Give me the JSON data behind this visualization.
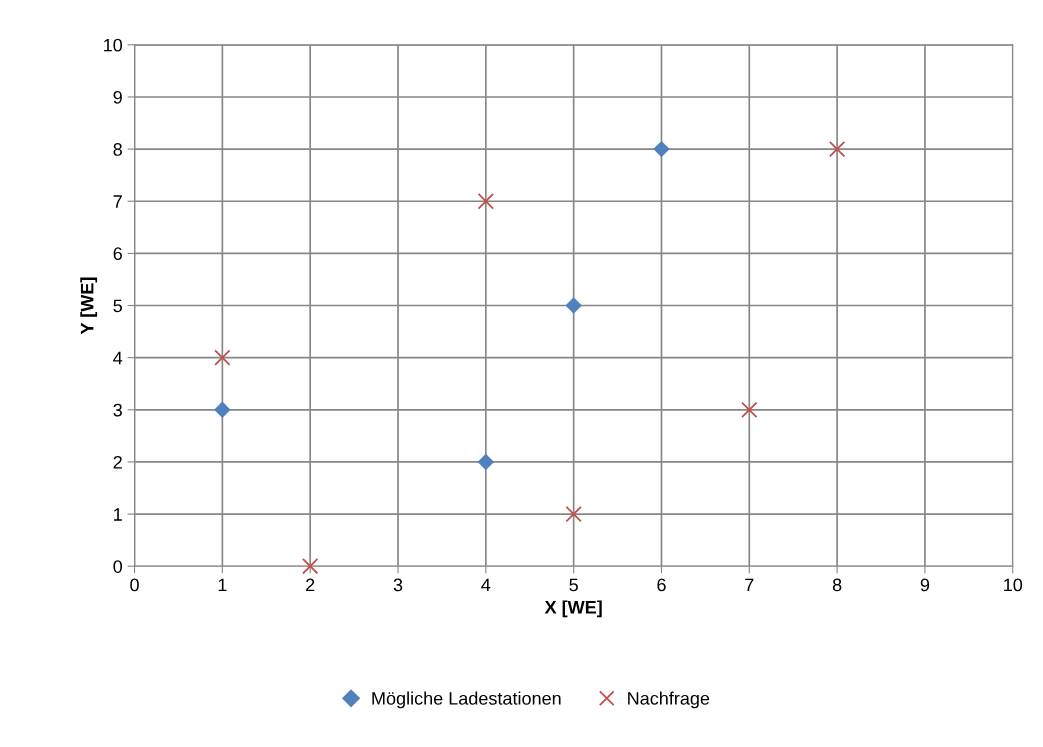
{
  "chart_data": {
    "type": "scatter",
    "xlabel": "X [WE]",
    "ylabel": "Y [WE]",
    "xlim": [
      0,
      10
    ],
    "xticks": [
      0,
      1,
      2,
      3,
      4,
      5,
      6,
      7,
      8,
      9,
      10
    ],
    "ylim": [
      0,
      10
    ],
    "yticks": [
      0,
      1,
      2,
      3,
      4,
      5,
      6,
      7,
      8,
      9,
      10
    ],
    "grid": true,
    "legend": "bottom",
    "series": [
      {
        "name": "Mögliche Ladestationen",
        "color": "#4f81bd",
        "marker": "diamond",
        "x": [
          1,
          4,
          5,
          6
        ],
        "values": [
          3,
          2,
          5,
          8
        ]
      },
      {
        "name": "Nachfrage",
        "color": "#c0504d",
        "marker": "cross",
        "x": [
          1,
          2,
          4,
          5,
          7,
          8
        ],
        "values": [
          4,
          0,
          7,
          1,
          3,
          8
        ]
      }
    ]
  }
}
